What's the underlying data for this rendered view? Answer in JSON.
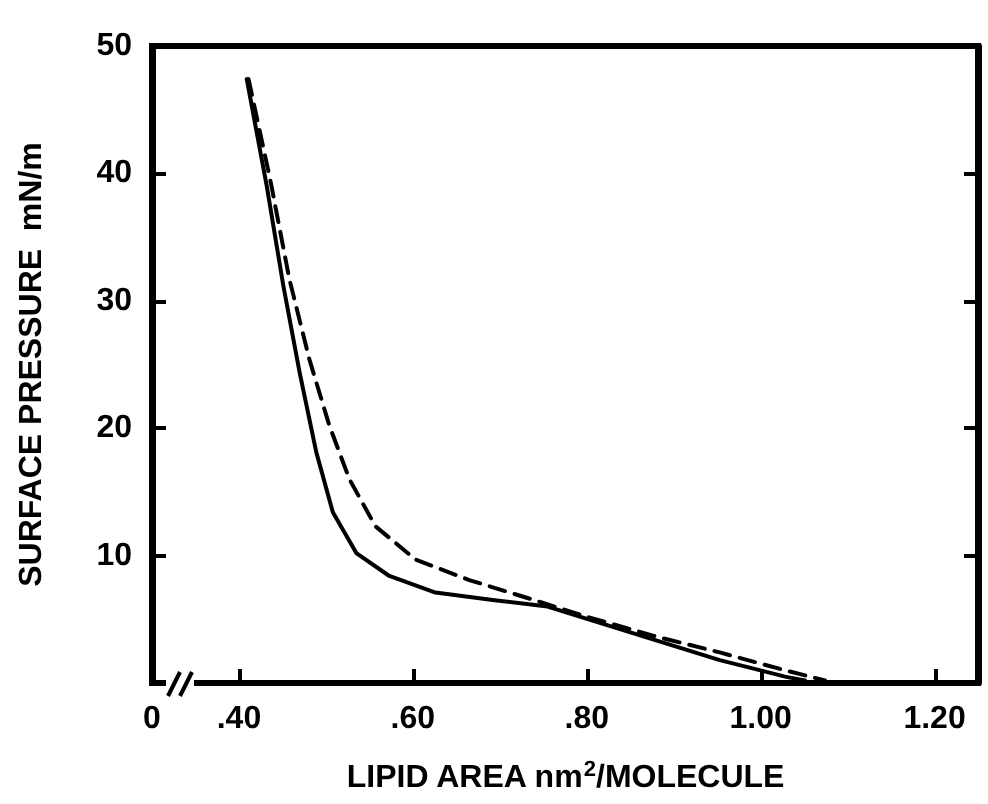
{
  "chart_data": {
    "type": "line",
    "xlabel": "LIPID AREA nm$^{2}$/MOLECULE",
    "ylabel": "SURFACE PRESSURE  mN/m",
    "xlim": [
      0.3,
      1.25
    ],
    "xticks": [
      {
        "value": 0.3,
        "label": "0"
      },
      {
        "value": 0.4,
        "label": ".40"
      },
      {
        "value": 0.6,
        "label": ".60"
      },
      {
        "value": 0.8,
        "label": ".80"
      },
      {
        "value": 1.0,
        "label": "1.00"
      },
      {
        "value": 1.2,
        "label": "1.20"
      }
    ],
    "ylim": [
      0,
      50
    ],
    "yticks": [
      {
        "value": 0,
        "label": null
      },
      10,
      20,
      30,
      40,
      50
    ],
    "marker": "none",
    "series": [
      {
        "color": "#000000",
        "line_style": "solid",
        "x": [
          0.409,
          0.432,
          0.451,
          0.47,
          0.489,
          0.508,
          0.535,
          0.573,
          0.626,
          0.694,
          0.755,
          0.816,
          0.877,
          0.953,
          1.028,
          1.051
        ],
        "values": [
          47.4,
          39.0,
          31.2,
          24.3,
          18.1,
          13.4,
          10.2,
          8.4,
          7.1,
          6.5,
          6.0,
          4.7,
          3.4,
          1.8,
          0.5,
          0.2
        ]
      },
      {
        "color": "#000000",
        "line_style": "dashed",
        "x": [
          0.411,
          0.436,
          0.458,
          0.481,
          0.504,
          0.527,
          0.557,
          0.603,
          0.664,
          0.74,
          0.8,
          0.877,
          0.953,
          1.028,
          1.074
        ],
        "values": [
          47.4,
          39.5,
          31.7,
          25.4,
          20.2,
          16.0,
          12.3,
          9.7,
          8.1,
          6.5,
          5.2,
          3.7,
          2.4,
          1.0,
          0.2
        ]
      }
    ]
  }
}
